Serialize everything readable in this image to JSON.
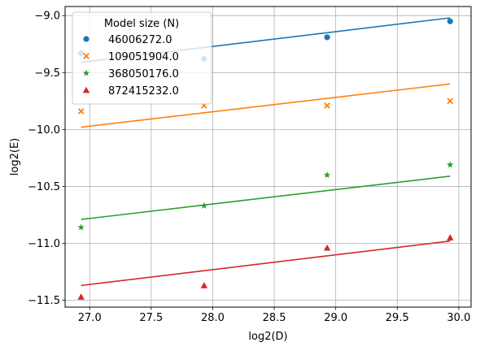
{
  "chart_data": {
    "type": "scatter",
    "title": "",
    "xlabel": "log2(D)",
    "ylabel": "log2(E)",
    "xlim": [
      26.8,
      30.1
    ],
    "ylim": [
      -11.56,
      -8.92
    ],
    "xticks": [
      27.0,
      27.5,
      28.0,
      28.5,
      29.0,
      29.5,
      30.0
    ],
    "xtick_labels": [
      "27.0",
      "27.5",
      "28.0",
      "28.5",
      "29.0",
      "29.5",
      "30.0"
    ],
    "yticks": [
      -9.0,
      -9.5,
      -10.0,
      -10.5,
      -11.0,
      -11.5
    ],
    "ytick_labels": [
      "−9.0",
      "−9.5",
      "−10.0",
      "−10.5",
      "−11.0",
      "−11.5"
    ],
    "grid": true,
    "legend": {
      "title": "Model size (N)",
      "placement": "upper-left"
    },
    "series": [
      {
        "name": "46006272.0",
        "color": "#1f77b4",
        "marker": "circle",
        "x": [
          26.93,
          27.93,
          28.93,
          29.93
        ],
        "y": [
          -9.33,
          -9.38,
          -9.19,
          -9.05
        ],
        "fit": {
          "x": [
            26.93,
            29.93
          ],
          "y": [
            -9.41,
            -9.02
          ]
        }
      },
      {
        "name": "109051904.0",
        "color": "#ff7f0e",
        "marker": "x",
        "x": [
          26.93,
          27.93,
          28.93,
          29.93
        ],
        "y": [
          -9.84,
          -9.79,
          -9.79,
          -9.75
        ],
        "fit": {
          "x": [
            26.93,
            29.93
          ],
          "y": [
            -9.98,
            -9.6
          ]
        }
      },
      {
        "name": "368050176.0",
        "color": "#2ca02c",
        "marker": "star",
        "x": [
          26.93,
          27.93,
          28.93,
          29.93
        ],
        "y": [
          -10.86,
          -10.67,
          -10.4,
          -10.31
        ],
        "fit": {
          "x": [
            26.93,
            29.93
          ],
          "y": [
            -10.79,
            -10.41
          ]
        }
      },
      {
        "name": "872415232.0",
        "color": "#d62728",
        "marker": "triangle",
        "x": [
          26.93,
          27.93,
          28.93,
          29.93
        ],
        "y": [
          -11.47,
          -11.37,
          -11.04,
          -10.95
        ],
        "fit": {
          "x": [
            26.93,
            29.93
          ],
          "y": [
            -11.37,
            -10.98
          ]
        }
      }
    ]
  }
}
